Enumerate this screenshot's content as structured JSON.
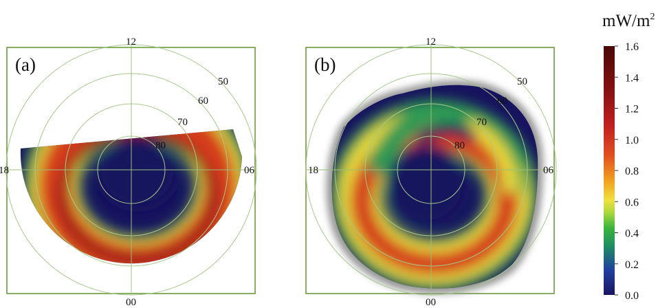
{
  "panels": [
    {
      "label": "(a)",
      "mlt_labels": {
        "top": "12",
        "bottom": "00",
        "left": "18",
        "right": "06"
      },
      "latitude_labels": [
        "50",
        "60",
        "70",
        "80"
      ]
    },
    {
      "label": "(b)",
      "mlt_labels": {
        "top": "12",
        "bottom": "00",
        "left": "18",
        "right": "06"
      },
      "latitude_labels": [
        "50",
        "60",
        "70",
        "80"
      ]
    }
  ],
  "colorbar": {
    "unit_base": "mW/m",
    "unit_sup": "2",
    "ticks": [
      "1.6",
      "1.4",
      "1.2",
      "1.0",
      "0.8",
      "0.6",
      "0.4",
      "0.2",
      "0.0"
    ],
    "min": 0.0,
    "max": 1.6,
    "colors": [
      "#1a1560",
      "#2040a0",
      "#1f8f60",
      "#3cb43c",
      "#a8d83c",
      "#f0e040",
      "#f0a020",
      "#e05020",
      "#c02020",
      "#801010",
      "#4a0808"
    ]
  },
  "colors": {
    "frame": "#6a9a3c",
    "grid_circle": "#a7c98a",
    "axis_line": "#9cbf7c",
    "background_low": "#17135e",
    "gap_gray": "#9a9a9a"
  }
}
